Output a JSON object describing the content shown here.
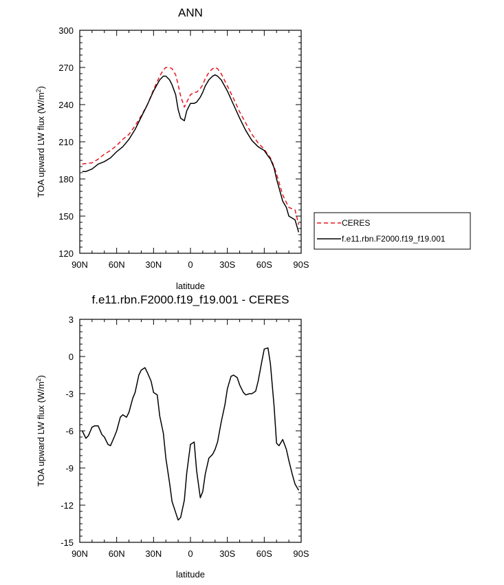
{
  "chart_data": [
    {
      "type": "line",
      "title": "ANN",
      "xlabel": "latitude",
      "ylabel": "TOA upward LW flux (W/m²)",
      "xticks": [
        "90N",
        "60N",
        "30N",
        "0",
        "30S",
        "60S",
        "90S"
      ],
      "yticks": [
        "120",
        "150",
        "180",
        "210",
        "240",
        "270",
        "300"
      ],
      "xlim": [
        90,
        -90
      ],
      "ylim": [
        120,
        300
      ],
      "legend_position": "right",
      "series": [
        {
          "name": "CERES",
          "color": "#e8141b",
          "dash": "dashed",
          "x": [
            88,
            85,
            80,
            75,
            70,
            65,
            60,
            55,
            50,
            45,
            40,
            35,
            30,
            25,
            22,
            20,
            17,
            15,
            12,
            10,
            8,
            5,
            3,
            0,
            -3,
            -5,
            -8,
            -10,
            -12,
            -15,
            -18,
            -20,
            -22,
            -25,
            -30,
            -35,
            -40,
            -45,
            -50,
            -55,
            -60,
            -62,
            -65,
            -68,
            -70,
            -75,
            -78,
            -80,
            -85,
            -88
          ],
          "y": [
            192,
            192.5,
            193,
            196,
            200,
            203,
            207,
            212,
            216,
            223,
            231,
            240,
            252,
            263,
            268,
            270,
            270,
            269,
            264,
            256,
            247,
            238,
            242,
            248,
            250,
            250,
            253,
            256,
            261,
            266,
            269,
            270,
            269,
            265,
            255,
            245,
            234,
            225,
            216,
            209,
            204,
            201,
            197,
            190,
            184,
            167,
            161,
            157,
            155,
            143
          ]
        },
        {
          "name": "f.e11.rbn.F2000.f19_f19.001",
          "color": "#000000",
          "dash": "solid",
          "x": [
            88,
            85,
            80,
            75,
            70,
            65,
            60,
            55,
            50,
            45,
            40,
            35,
            30,
            25,
            22,
            20,
            17,
            15,
            12,
            10,
            8,
            5,
            3,
            0,
            -3,
            -5,
            -8,
            -10,
            -12,
            -15,
            -18,
            -20,
            -22,
            -25,
            -30,
            -35,
            -40,
            -45,
            -50,
            -55,
            -60,
            -62,
            -65,
            -68,
            -70,
            -75,
            -78,
            -80,
            -85,
            -88
          ],
          "y": [
            186,
            186,
            188,
            192,
            194,
            197,
            202,
            206,
            212,
            220,
            230,
            240,
            251,
            260,
            263,
            263,
            260,
            256,
            248,
            236,
            229,
            227,
            235,
            241,
            241,
            242,
            246,
            250,
            255,
            260,
            263,
            264,
            263,
            260,
            251,
            240,
            229,
            219,
            211,
            206,
            203,
            200,
            196,
            189,
            180,
            162,
            157,
            150,
            147,
            137
          ]
        }
      ]
    },
    {
      "type": "line",
      "title": "f.e11.rbn.F2000.f19_f19.001 - CERES",
      "xlabel": "latitude",
      "ylabel": "TOA upward LW flux (W/m²)",
      "xticks": [
        "90N",
        "60N",
        "30N",
        "0",
        "30S",
        "60S",
        "90S"
      ],
      "yticks": [
        "-15",
        "-12",
        "-9",
        "-6",
        "-3",
        "0",
        "3"
      ],
      "xlim": [
        90,
        -90
      ],
      "ylim": [
        -15,
        3
      ],
      "series": [
        {
          "color": "#000000",
          "dash": "solid",
          "x": [
            88,
            85,
            83,
            80,
            78,
            75,
            72,
            70,
            67,
            65,
            62,
            60,
            57,
            55,
            52,
            50,
            47,
            45,
            42,
            40,
            37,
            35,
            32,
            30,
            27,
            25,
            22,
            20,
            17,
            15,
            12,
            10,
            8,
            5,
            3,
            0,
            -3,
            -5,
            -8,
            -10,
            -12,
            -15,
            -18,
            -20,
            -22,
            -25,
            -28,
            -30,
            -33,
            -35,
            -38,
            -40,
            -43,
            -45,
            -48,
            -50,
            -53,
            -55,
            -58,
            -60,
            -63,
            -65,
            -68,
            -70,
            -72,
            -75,
            -78,
            -80,
            -83,
            -85,
            -88
          ],
          "y": [
            -6.0,
            -6.6,
            -6.4,
            -5.7,
            -5.6,
            -5.6,
            -6.3,
            -6.5,
            -7.1,
            -7.2,
            -6.5,
            -6.0,
            -4.9,
            -4.7,
            -4.9,
            -4.5,
            -3.4,
            -2.9,
            -1.5,
            -1.1,
            -0.9,
            -1.3,
            -2.0,
            -2.9,
            -3.1,
            -4.8,
            -6.2,
            -8.2,
            -10.2,
            -11.7,
            -12.6,
            -13.2,
            -13.0,
            -11.6,
            -9.4,
            -7.1,
            -6.9,
            -9.2,
            -11.4,
            -10.9,
            -9.5,
            -8.2,
            -7.9,
            -7.5,
            -6.9,
            -5.3,
            -3.9,
            -2.6,
            -1.6,
            -1.5,
            -1.7,
            -2.3,
            -2.9,
            -3.1,
            -3.0,
            -3.0,
            -2.8,
            -2.0,
            -0.4,
            0.6,
            0.7,
            -0.6,
            -4.0,
            -7.0,
            -7.2,
            -6.7,
            -7.5,
            -8.4,
            -9.6,
            -10.3,
            -10.8
          ]
        }
      ]
    }
  ]
}
